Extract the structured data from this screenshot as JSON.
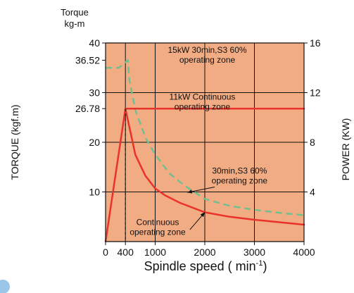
{
  "chart_data": {
    "type": "line",
    "xlabel": "Spindle speed ( min",
    "xlabel_sup": "-1",
    "xlabel_end": ")",
    "ylabel_left": "TORQUE (kgf.m)",
    "ylabel_right": "POWER (KW)",
    "left_axis_title": [
      "Torque",
      "kg-m"
    ],
    "x_ticks": [
      0,
      400,
      1000,
      2000,
      3000,
      4000
    ],
    "x_tick_labels": [
      "0",
      "400",
      "1000",
      "2000",
      "3000",
      "4000"
    ],
    "xlim": [
      0,
      4000
    ],
    "ylim_left": [
      0,
      40
    ],
    "y_ticks_left": [
      10,
      20,
      30,
      40
    ],
    "y_tick_labels_left": [
      "10",
      "20",
      "30",
      "40"
    ],
    "y_special_left": [
      36.52,
      26.78
    ],
    "y_special_labels_left": [
      "36.52",
      "26.78"
    ],
    "ylim_right": [
      0,
      16
    ],
    "y_ticks_right": [
      4,
      8,
      12,
      16
    ],
    "y_tick_labels_right": [
      "4",
      "8",
      "12",
      "16"
    ],
    "grid": true,
    "background_color": "#f2ac84",
    "series": [
      {
        "style": "dashed",
        "color": "#6fbf8f",
        "x": [
          0,
          270,
          450,
          480,
          600,
          800,
          1000,
          1300,
          1600,
          2000,
          2500,
          3000,
          3500,
          4000
        ],
        "y": [
          35,
          35,
          36.52,
          32.5,
          26.5,
          21,
          17.5,
          13.6,
          11.2,
          8.6,
          7.2,
          6.4,
          5.8,
          5.3
        ]
      },
      {
        "style": "solid",
        "color": "#e8322a",
        "x": [
          0,
          400,
          600,
          800,
          1000,
          1200,
          1500,
          2000,
          2500,
          3000,
          3500,
          4000
        ],
        "y": [
          0,
          26.78,
          17.5,
          13.3,
          10.7,
          9.3,
          7.8,
          5.9,
          5.0,
          4.4,
          3.9,
          3.4
        ]
      },
      {
        "style": "solid",
        "color": "#e8322a",
        "x": [
          400,
          4000
        ],
        "y": [
          26.78,
          26.78
        ]
      }
    ],
    "annotations": [
      {
        "lines": [
          "15kW 30min,S3 60%",
          "operating zone"
        ],
        "x": 2050,
        "y": 38
      },
      {
        "lines": [
          "11kW Continuous",
          "operating zone"
        ],
        "x": 1950,
        "y": 28.6
      },
      {
        "lines": [
          "30min,S3 60%",
          "operating zone"
        ],
        "x": 2700,
        "y": 13.7
      },
      {
        "lines": [
          "Continuous",
          "operating zone"
        ],
        "x": 1050,
        "y": 3.3
      }
    ]
  }
}
